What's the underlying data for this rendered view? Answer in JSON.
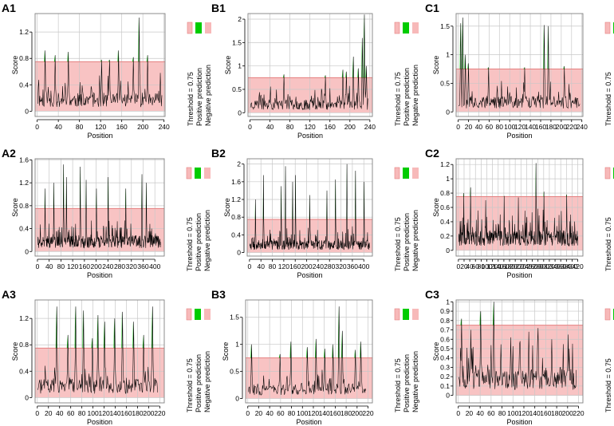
{
  "legend": {
    "threshold_label": "Threshold = 0.75",
    "positive_label": "Positive prediction",
    "negative_label": "Negative prediction"
  },
  "colors": {
    "negative_fill": "#f7b9b9",
    "positive": "#00cc00",
    "threshold_line": "#e57f7f",
    "grid": "#c8c8c8",
    "line": "#000000"
  },
  "chart_data": [
    {
      "id": "A1",
      "type": "line",
      "title": "A1",
      "xlabel": "Position",
      "ylabel": "Score",
      "threshold": 0.75,
      "xlim": [
        -4,
        242
      ],
      "ylim": [
        -0.08,
        1.48
      ],
      "xticks": [
        0,
        40,
        80,
        120,
        160,
        200,
        240
      ],
      "yticks": [
        0,
        0.4,
        0.8,
        1.2
      ],
      "ytick_labels": [
        "0",
        "0.4",
        "0.8",
        "1.2"
      ],
      "length": 236,
      "seed": 11,
      "spikes": [
        [
          14,
          0.92
        ],
        [
          33,
          0.85
        ],
        [
          58,
          0.9
        ],
        [
          121,
          0.78
        ],
        [
          136,
          0.78
        ],
        [
          153,
          0.92
        ],
        [
          181,
          0.82
        ],
        [
          192,
          1.42
        ],
        [
          208,
          0.85
        ]
      ]
    },
    {
      "id": "B1",
      "type": "line",
      "title": "B1",
      "xlabel": "Position",
      "ylabel": "Score",
      "threshold": 0.75,
      "xlim": [
        -4,
        245
      ],
      "ylim": [
        -0.08,
        2.12
      ],
      "xticks": [
        0,
        40,
        80,
        120,
        160,
        200,
        240
      ],
      "yticks": [
        0,
        0.5,
        1,
        1.5,
        2
      ],
      "ytick_labels": [
        "0",
        "0.5",
        "1",
        "1.5",
        "2"
      ],
      "length": 236,
      "seed": 23,
      "spikes": [
        [
          67,
          0.82
        ],
        [
          150,
          0.8
        ],
        [
          185,
          0.92
        ],
        [
          192,
          0.88
        ],
        [
          206,
          1.2
        ],
        [
          216,
          0.95
        ],
        [
          224,
          1.6
        ],
        [
          228,
          2.1
        ],
        [
          232,
          1.0
        ]
      ]
    },
    {
      "id": "C1",
      "type": "line",
      "title": "C1",
      "xlabel": "Position",
      "ylabel": "Score",
      "threshold": 0.75,
      "xlim": [
        -4,
        242
      ],
      "ylim": [
        -0.08,
        1.72
      ],
      "xticks": [
        0,
        20,
        40,
        60,
        80,
        100,
        120,
        140,
        160,
        180,
        200,
        220,
        240
      ],
      "yticks": [
        0,
        0.5,
        1,
        1.5
      ],
      "ytick_labels": [
        "0",
        "0.5",
        "1",
        "1.5"
      ],
      "length": 236,
      "seed": 37,
      "spikes": [
        [
          4,
          1.55
        ],
        [
          8,
          1.65
        ],
        [
          13,
          1.0
        ],
        [
          19,
          0.85
        ],
        [
          58,
          0.78
        ],
        [
          128,
          0.78
        ],
        [
          166,
          1.52
        ],
        [
          174,
          1.5
        ],
        [
          205,
          0.8
        ]
      ]
    },
    {
      "id": "A2",
      "type": "line",
      "title": "A2",
      "xlabel": "Position",
      "ylabel": "Score",
      "threshold": 0.75,
      "xlim": [
        -8,
        432
      ],
      "ylim": [
        -0.08,
        1.62
      ],
      "xticks": [
        0,
        40,
        80,
        120,
        160,
        200,
        240,
        280,
        320,
        360,
        400
      ],
      "yticks": [
        0,
        0.4,
        0.8,
        1.2,
        1.6
      ],
      "ytick_labels": [
        "0",
        "0.4",
        "0.8",
        "1.2",
        "1.6"
      ],
      "length": 420,
      "seed": 41,
      "spikes": [
        [
          25,
          1.1
        ],
        [
          55,
          1.2
        ],
        [
          88,
          1.52
        ],
        [
          98,
          1.3
        ],
        [
          145,
          1.48
        ],
        [
          165,
          1.25
        ],
        [
          200,
          1.1
        ],
        [
          240,
          1.3
        ],
        [
          300,
          1.1
        ],
        [
          355,
          1.35
        ],
        [
          370,
          1.2
        ]
      ]
    },
    {
      "id": "B2",
      "type": "line",
      "title": "B2",
      "xlabel": "Position",
      "ylabel": "Score",
      "threshold": 0.75,
      "xlim": [
        -8,
        430
      ],
      "ylim": [
        -0.08,
        2.12
      ],
      "xticks": [
        0,
        40,
        80,
        120,
        160,
        200,
        240,
        280,
        320,
        360,
        400
      ],
      "yticks": [
        0,
        0.4,
        0.8,
        1.2,
        1.6,
        2
      ],
      "ytick_labels": [
        "0",
        "0.4",
        "0.8",
        "1.2",
        "1.6",
        "2"
      ],
      "length": 420,
      "seed": 53,
      "spikes": [
        [
          20,
          1.2
        ],
        [
          48,
          1.75
        ],
        [
          110,
          1.5
        ],
        [
          125,
          1.95
        ],
        [
          150,
          1.6
        ],
        [
          160,
          1.75
        ],
        [
          210,
          1.3
        ],
        [
          270,
          1.4
        ],
        [
          300,
          1.65
        ],
        [
          340,
          2.0
        ],
        [
          370,
          1.85
        ],
        [
          400,
          1.6
        ]
      ]
    },
    {
      "id": "C2",
      "type": "line",
      "title": "C2",
      "xlabel": "Position",
      "ylabel": "Score",
      "threshold": 0.75,
      "xlim": [
        -8,
        438
      ],
      "ylim": [
        -0.08,
        1.28
      ],
      "xticks": [
        0,
        20,
        40,
        60,
        80,
        100,
        120,
        140,
        160,
        180,
        200,
        220,
        240,
        260,
        280,
        300,
        320,
        340,
        360,
        380,
        400,
        420
      ],
      "yticks": [
        0,
        0.2,
        0.4,
        0.6,
        0.8,
        1,
        1.2
      ],
      "ytick_labels": [
        "0",
        "0.2",
        "0.4",
        "0.6",
        "0.8",
        "1",
        "1.2"
      ],
      "length": 420,
      "seed": 67,
      "spikes": [
        [
          18,
          0.8
        ],
        [
          42,
          0.88
        ],
        [
          95,
          0.7
        ],
        [
          160,
          0.76
        ],
        [
          210,
          0.74
        ],
        [
          272,
          1.22
        ],
        [
          300,
          0.82
        ],
        [
          380,
          0.78
        ]
      ]
    },
    {
      "id": "A3",
      "type": "line",
      "title": "A3",
      "xlabel": "Position",
      "ylabel": "Score",
      "threshold": 0.75,
      "xlim": [
        -4,
        228
      ],
      "ylim": [
        -0.08,
        1.48
      ],
      "xticks": [
        0,
        20,
        40,
        60,
        80,
        100,
        120,
        140,
        160,
        180,
        200,
        220
      ],
      "yticks": [
        0,
        0.4,
        0.8,
        1.2
      ],
      "ytick_labels": [
        "0",
        "0.4",
        "0.8",
        "1.2"
      ],
      "length": 216,
      "seed": 71,
      "spikes": [
        [
          34,
          1.38
        ],
        [
          54,
          0.95
        ],
        [
          68,
          1.38
        ],
        [
          82,
          1.32
        ],
        [
          98,
          0.9
        ],
        [
          108,
          1.25
        ],
        [
          120,
          1.15
        ],
        [
          138,
          1.2
        ],
        [
          152,
          1.3
        ],
        [
          172,
          1.15
        ],
        [
          190,
          0.95
        ],
        [
          206,
          1.38
        ]
      ]
    },
    {
      "id": "B3",
      "type": "line",
      "title": "B3",
      "xlabel": "Position",
      "ylabel": "Score",
      "threshold": 0.75,
      "xlim": [
        -4,
        228
      ],
      "ylim": [
        -0.08,
        1.82
      ],
      "xticks": [
        0,
        20,
        40,
        60,
        80,
        100,
        120,
        140,
        160,
        180,
        200,
        220
      ],
      "yticks": [
        0,
        0.5,
        1,
        1.5
      ],
      "ytick_labels": [
        "0",
        "0.5",
        "1",
        "1.5"
      ],
      "length": 216,
      "seed": 83,
      "spikes": [
        [
          6,
          1.0
        ],
        [
          58,
          0.82
        ],
        [
          78,
          1.05
        ],
        [
          108,
          0.95
        ],
        [
          124,
          1.1
        ],
        [
          140,
          0.92
        ],
        [
          155,
          1.0
        ],
        [
          166,
          1.7
        ],
        [
          172,
          1.25
        ],
        [
          196,
          0.9
        ],
        [
          206,
          1.05
        ]
      ]
    },
    {
      "id": "C3",
      "type": "line",
      "title": "C3",
      "xlabel": "Position",
      "ylabel": "Score",
      "threshold": 0.75,
      "xlim": [
        -4,
        228
      ],
      "ylim": [
        -0.08,
        1.02
      ],
      "xticks": [
        0,
        20,
        40,
        60,
        80,
        100,
        120,
        140,
        160,
        180,
        200,
        220
      ],
      "yticks": [
        0,
        0.1,
        0.2,
        0.3,
        0.4,
        0.5,
        0.6,
        0.7,
        0.8,
        0.9,
        1
      ],
      "ytick_labels": [
        "0",
        "0.1",
        "0.2",
        "0.3",
        "0.4",
        "0.5",
        "0.6",
        "0.7",
        "0.8",
        "0.9",
        "1"
      ],
      "length": 216,
      "seed": 97,
      "spikes": [
        [
          5,
          0.82
        ],
        [
          22,
          0.7
        ],
        [
          40,
          0.9
        ],
        [
          64,
          1.0
        ],
        [
          95,
          0.62
        ],
        [
          128,
          0.68
        ],
        [
          145,
          0.72
        ],
        [
          170,
          0.6
        ],
        [
          200,
          0.65
        ]
      ]
    }
  ]
}
